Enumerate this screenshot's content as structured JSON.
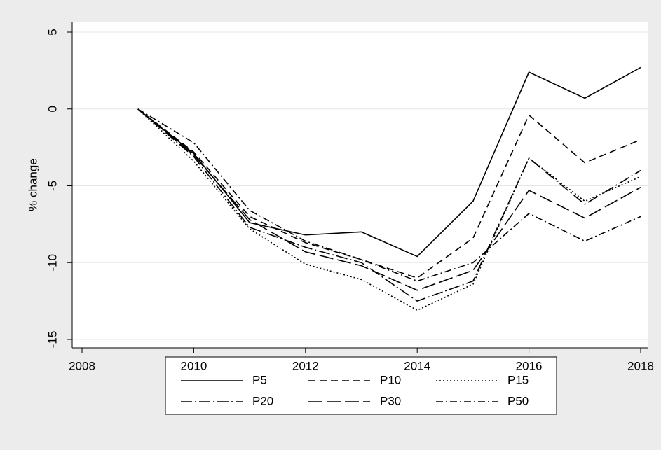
{
  "chart_data": {
    "type": "line",
    "y_label": "% change",
    "x": [
      2009,
      2010,
      2011,
      2012,
      2013,
      2014,
      2015,
      2016,
      2017,
      2018
    ],
    "series": [
      {
        "name": "P5",
        "color": "#000000",
        "values": [
          0,
          -2.9,
          -7.4,
          -8.2,
          -8.0,
          -9.6,
          -6.0,
          2.4,
          0.7,
          2.7
        ]
      },
      {
        "name": "P10",
        "color": "#000000",
        "values": [
          0,
          -2.8,
          -7.0,
          -8.7,
          -9.8,
          -11.0,
          -8.4,
          -0.4,
          -3.5,
          -2.0
        ]
      },
      {
        "name": "P15",
        "color": "#000000",
        "values": [
          0,
          -3.4,
          -7.8,
          -10.1,
          -11.1,
          -13.1,
          -11.4,
          -3.2,
          -6.0,
          -4.4
        ]
      },
      {
        "name": "P20",
        "color": "#000000",
        "values": [
          0,
          -3.1,
          -7.7,
          -9.0,
          -10.0,
          -12.5,
          -11.2,
          -3.2,
          -6.2,
          -4.0
        ]
      },
      {
        "name": "P30",
        "color": "#000000",
        "values": [
          0,
          -3.0,
          -7.2,
          -9.3,
          -10.2,
          -11.8,
          -10.5,
          -5.3,
          -7.1,
          -5.1
        ]
      },
      {
        "name": "P50",
        "color": "#000000",
        "values": [
          0,
          -2.2,
          -6.6,
          -8.6,
          -9.8,
          -11.2,
          -10.0,
          -6.8,
          -8.6,
          -7.0
        ]
      }
    ],
    "xlim": [
      2008,
      2018
    ],
    "xticks": [
      2008,
      2010,
      2012,
      2014,
      2016,
      2018
    ],
    "ylim": [
      -15,
      5
    ],
    "yticks": [
      -15,
      -10,
      -5,
      0,
      5
    ],
    "grid": true,
    "legend": "bottom"
  }
}
